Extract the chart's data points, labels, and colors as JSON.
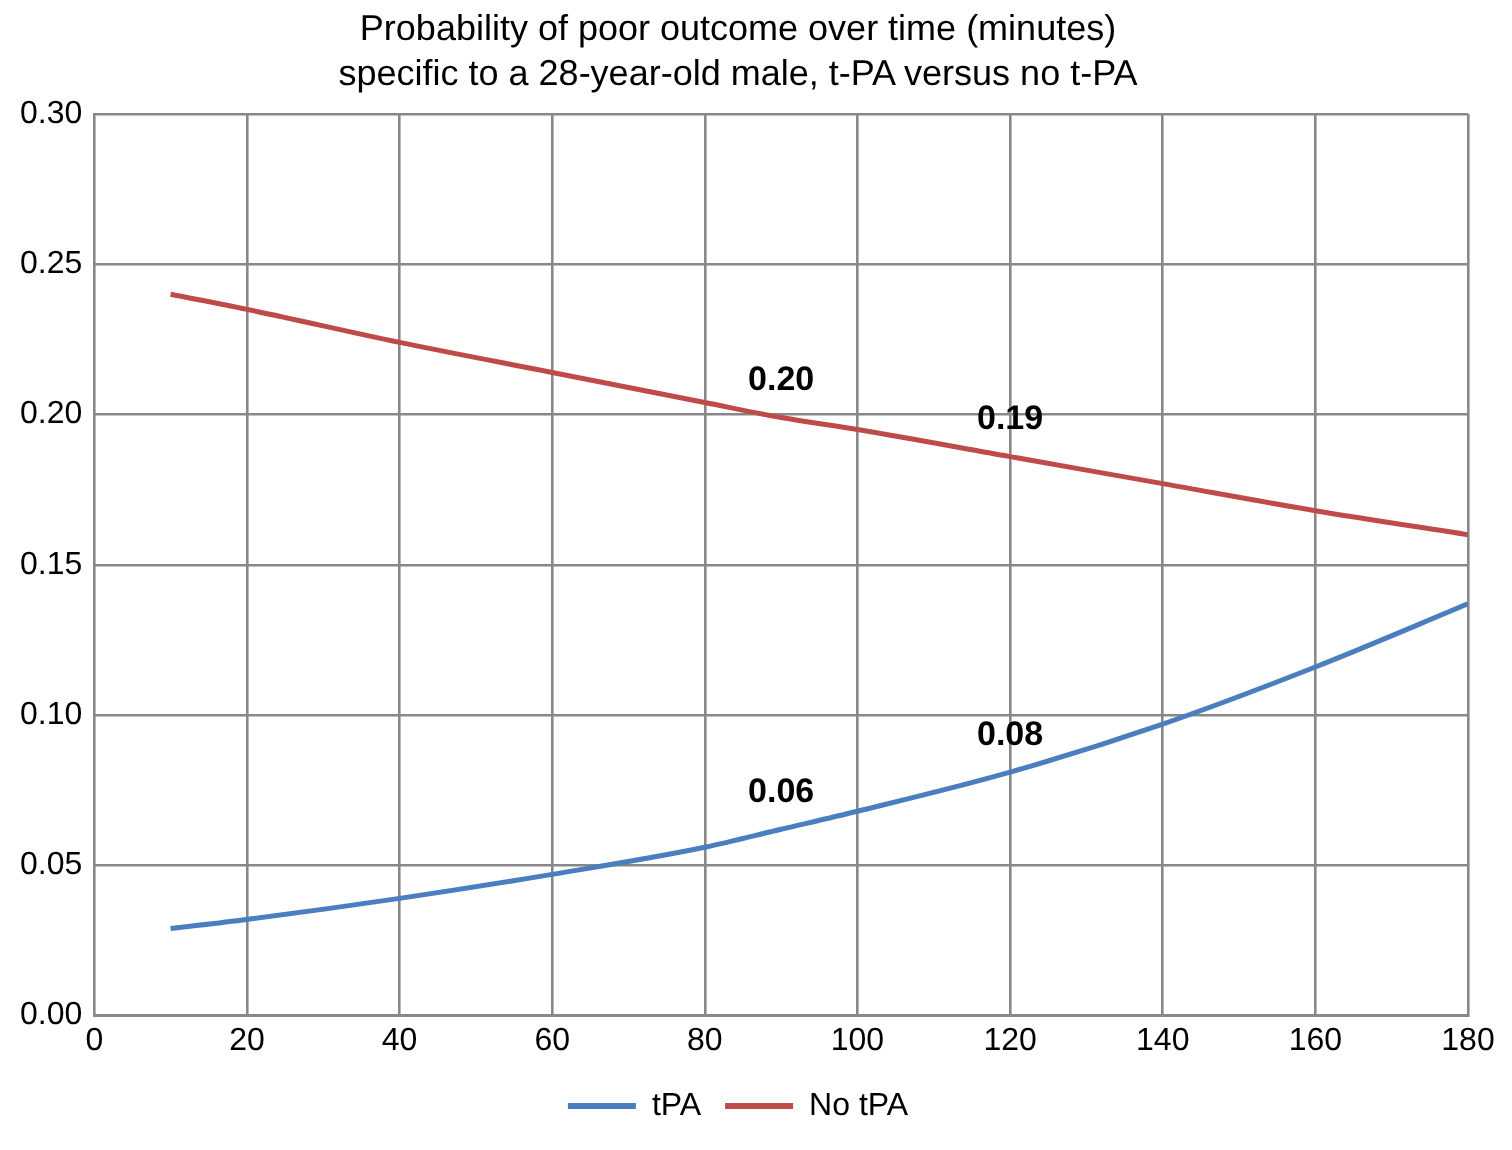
{
  "chart_data": {
    "type": "line",
    "title": "Probability of poor outcome over time (minutes)\nspecific to a 28-year-old male, t-PA versus no t-PA",
    "x": [
      10,
      20,
      40,
      60,
      80,
      90,
      100,
      120,
      140,
      160,
      180
    ],
    "series": [
      {
        "name": "tPA",
        "color": "#4a7ebf",
        "values": [
          0.029,
          0.032,
          0.039,
          0.047,
          0.056,
          0.062,
          0.068,
          0.081,
          0.097,
          0.116,
          0.137
        ],
        "value_labels": [
          null,
          null,
          null,
          null,
          null,
          "0.06",
          null,
          "0.08",
          null,
          null,
          null
        ]
      },
      {
        "name": "No tPA",
        "color": "#be4b48",
        "values": [
          0.24,
          0.235,
          0.224,
          0.214,
          0.204,
          0.199,
          0.195,
          0.186,
          0.177,
          0.168,
          0.16
        ],
        "value_labels": [
          null,
          null,
          null,
          null,
          null,
          "0.20",
          null,
          "0.19",
          null,
          null,
          null
        ]
      }
    ],
    "xlim": [
      0,
      180
    ],
    "xticks": [
      0,
      20,
      40,
      60,
      80,
      100,
      120,
      140,
      160,
      180
    ],
    "ylim": [
      0,
      0.3
    ],
    "yticks": [
      {
        "value": 0,
        "label": "0.00"
      },
      {
        "value": 0.05,
        "label": "0.05"
      },
      {
        "value": 0.1,
        "label": "0.10"
      },
      {
        "value": 0.15,
        "label": "0.15"
      },
      {
        "value": 0.2,
        "label": "0.20"
      },
      {
        "value": 0.25,
        "label": "0.25"
      },
      {
        "value": 0.3,
        "label": "0.30"
      }
    ],
    "grid": true,
    "legend": "bottom",
    "marker": "none",
    "line_style": "solid"
  }
}
